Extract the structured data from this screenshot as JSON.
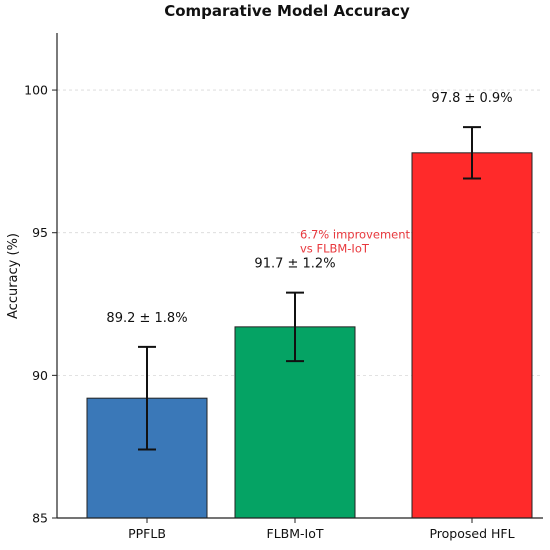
{
  "chart_data": {
    "type": "bar",
    "title": "Comparative Model Accuracy",
    "xlabel": "",
    "ylabel": "Accuracy (%)",
    "ylim": [
      85,
      102
    ],
    "yticks": [
      85,
      90,
      95,
      100
    ],
    "grid": "horizontal dashed",
    "categories": [
      "PPFLB",
      "FLBM-IoT",
      "Proposed HFL"
    ],
    "values": [
      89.2,
      91.7,
      97.8
    ],
    "errors": [
      1.8,
      1.2,
      0.9
    ],
    "data_labels": [
      "89.2 ± 1.8%",
      "91.7 ± 1.2%",
      "97.8 ± 0.9%"
    ],
    "colors": [
      "#3a78b8",
      "#05a364",
      "#ff2a2a"
    ],
    "annotation": {
      "lines": [
        "6.7% improvement",
        "vs FLBM-IoT"
      ],
      "color": "#e8383d",
      "category": "Proposed HFL",
      "y": 94.8
    }
  }
}
